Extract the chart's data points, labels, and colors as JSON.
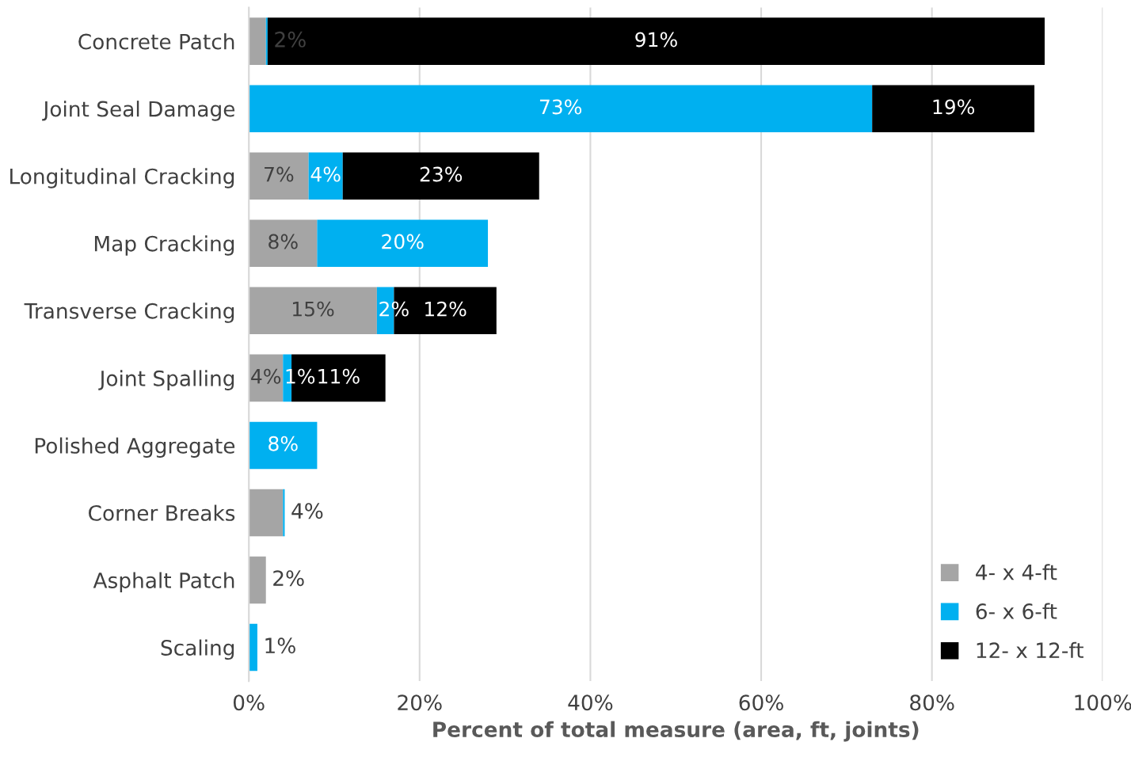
{
  "chart_data": {
    "type": "bar",
    "orientation": "horizontal",
    "stacked": true,
    "xlabel": "Percent of total measure (area, ft, joints)",
    "categories": [
      "Concrete Patch",
      "Joint Seal Damage",
      "Longitudinal Cracking",
      "Map Cracking",
      "Transverse Cracking",
      "Joint Spalling",
      "Polished Aggregate",
      "Corner Breaks",
      "Asphalt Patch",
      "Scaling"
    ],
    "series": [
      {
        "name": "4- x 4-ft",
        "color": "#a5a5a5",
        "values": [
          2,
          0,
          7,
          8,
          15,
          4,
          0,
          4,
          2,
          0
        ],
        "value_labels": [
          "2%",
          null,
          "7%",
          "8%",
          "15%",
          "4%",
          null,
          "4%",
          "2%",
          null
        ]
      },
      {
        "name": "6- x 6-ft",
        "color": "#00b0f0",
        "values": [
          0.2,
          73,
          4,
          20,
          2,
          1,
          8,
          0.2,
          0,
          1
        ],
        "value_labels": [
          null,
          "73%",
          "4%",
          "20%",
          "2%",
          "1%",
          "8%",
          null,
          null,
          "1%"
        ]
      },
      {
        "name": "12- x 12-ft",
        "color": "#000000",
        "values": [
          91,
          19,
          23,
          0,
          12,
          11,
          0,
          0,
          0,
          0
        ],
        "value_labels": [
          "91%",
          "19%",
          "23%",
          null,
          "12%",
          "11%",
          null,
          null,
          null,
          null
        ]
      }
    ],
    "xlim": [
      0,
      100
    ],
    "xticks": [
      {
        "value": 0,
        "label": "0%"
      },
      {
        "value": 20,
        "label": "20%"
      },
      {
        "value": 40,
        "label": "40%"
      },
      {
        "value": 60,
        "label": "60%"
      },
      {
        "value": 80,
        "label": "80%"
      },
      {
        "value": 100,
        "label": "100%"
      }
    ],
    "grid": "x",
    "legend": "bottom right"
  }
}
